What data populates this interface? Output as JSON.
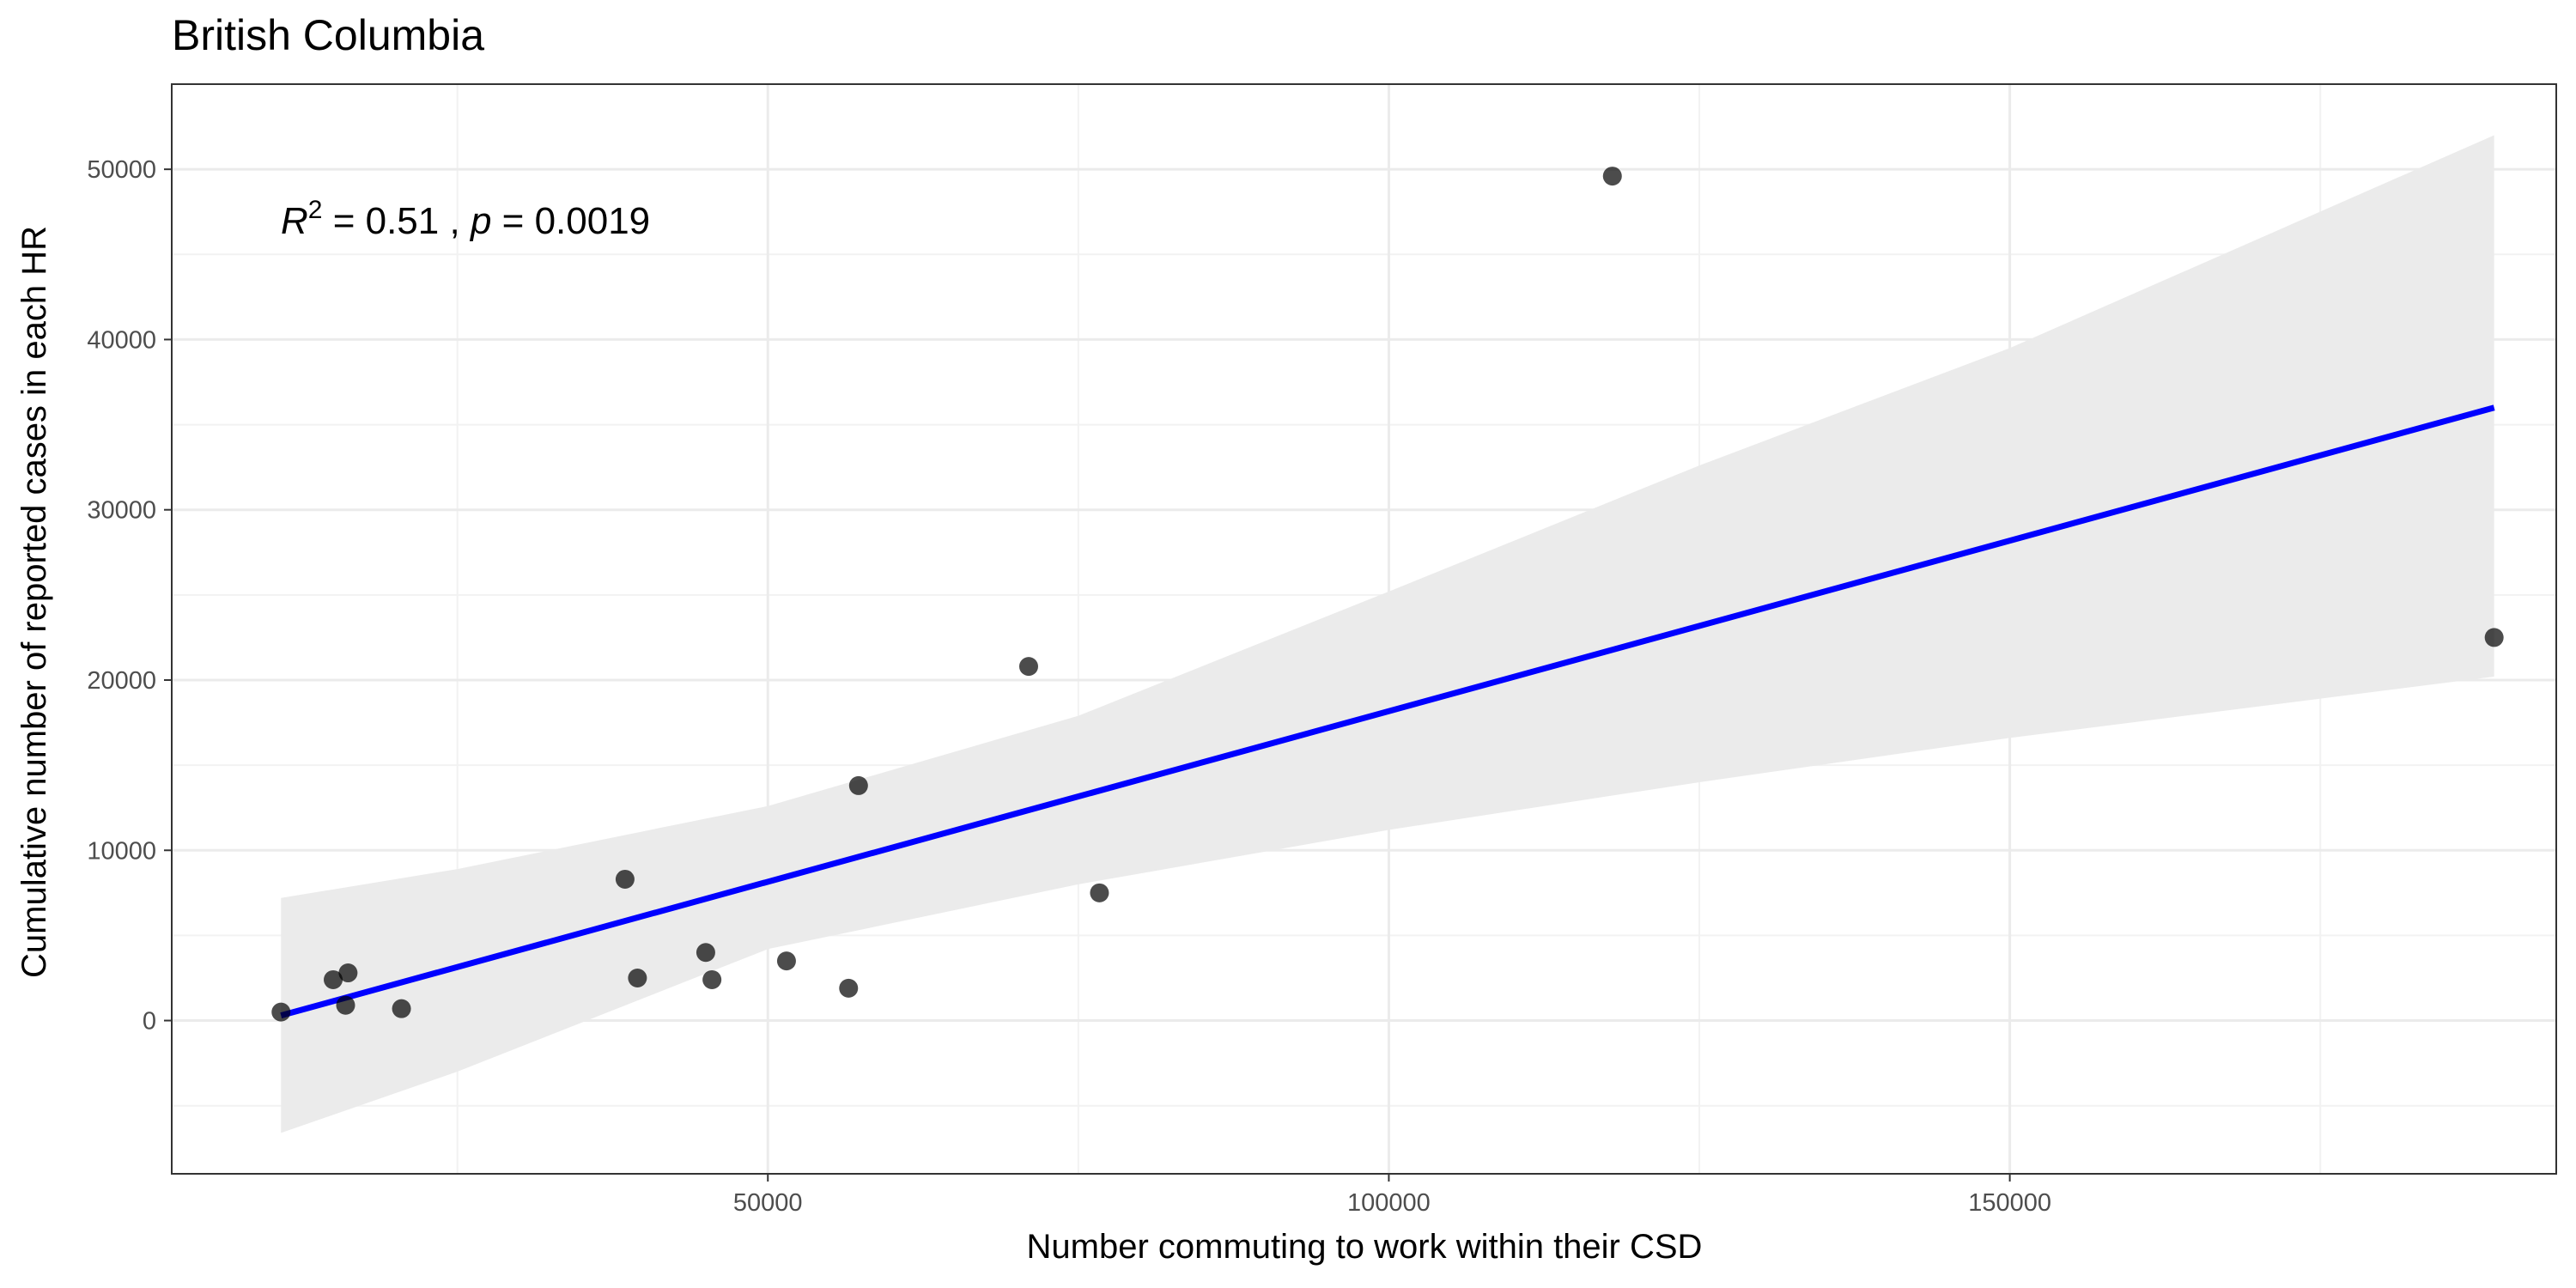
{
  "chart_data": {
    "type": "scatter",
    "title": "British Columbia",
    "xlabel": "Number commuting to work within their CSD",
    "ylabel": "Cumulative number of reported cases in each HR",
    "xlim": [
      2000,
      194000
    ],
    "ylim": [
      -9000,
      55000
    ],
    "x_ticks": [
      50000,
      100000,
      150000
    ],
    "x_tick_labels": [
      "50000",
      "100000",
      "150000"
    ],
    "x_minor_ticks": [
      25000,
      75000,
      125000,
      175000
    ],
    "y_ticks": [
      0,
      10000,
      20000,
      30000,
      40000,
      50000
    ],
    "y_tick_labels": [
      "0",
      "10000",
      "20000",
      "30000",
      "40000",
      "50000"
    ],
    "y_minor_ticks": [
      -5000,
      5000,
      15000,
      25000,
      35000,
      45000
    ],
    "grid": true,
    "annotation": {
      "r_symbol": "R",
      "r_exponent": "2",
      "r_value": " = 0.51 , ",
      "p_symbol": "p",
      "p_value": " = 0.0019"
    },
    "points": [
      {
        "x": 10800,
        "y": 500
      },
      {
        "x": 15000,
        "y": 2400
      },
      {
        "x": 16200,
        "y": 2800
      },
      {
        "x": 16000,
        "y": 900
      },
      {
        "x": 20500,
        "y": 700
      },
      {
        "x": 38500,
        "y": 8300
      },
      {
        "x": 39500,
        "y": 2500
      },
      {
        "x": 45000,
        "y": 4000
      },
      {
        "x": 45500,
        "y": 2400
      },
      {
        "x": 51500,
        "y": 3500
      },
      {
        "x": 56500,
        "y": 1900
      },
      {
        "x": 57300,
        "y": 13800
      },
      {
        "x": 71000,
        "y": 20800
      },
      {
        "x": 76700,
        "y": 7500
      },
      {
        "x": 118000,
        "y": 49600
      },
      {
        "x": 189000,
        "y": 22500
      }
    ],
    "fit_line": {
      "x": [
        10800,
        189000
      ],
      "y": [
        300,
        36000
      ],
      "color": "#0000ff"
    },
    "confidence_band": {
      "x": [
        10800,
        25000,
        50000,
        75000,
        100000,
        125000,
        150000,
        189000
      ],
      "upper": [
        7200,
        8900,
        12600,
        17900,
        25200,
        32600,
        39500,
        52000
      ],
      "lower": [
        -6600,
        -3000,
        4200,
        8000,
        11200,
        14000,
        16600,
        20200
      ],
      "color": "#ebebeb"
    },
    "point_color": "#000000"
  }
}
